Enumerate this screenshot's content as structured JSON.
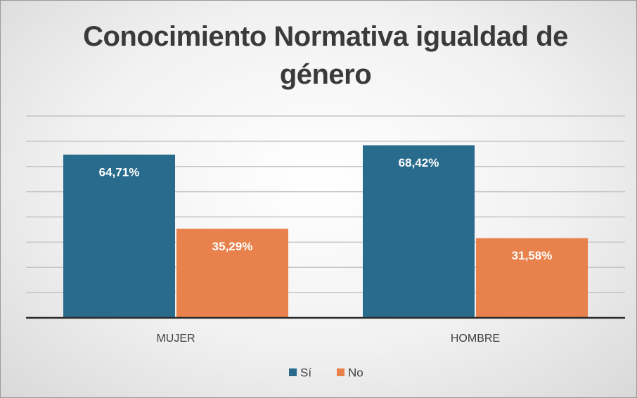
{
  "chart_data": {
    "type": "bar",
    "title": "Conocimiento Normativa igualdad de género",
    "categories": [
      "MUJER",
      "HOMBRE"
    ],
    "series": [
      {
        "name": "Sí",
        "color": "#286b8d",
        "values": [
          64.71,
          68.42
        ],
        "value_labels": [
          "64,71%",
          "68,42%"
        ]
      },
      {
        "name": "No",
        "color": "#e8814b",
        "values": [
          35.29,
          31.58
        ],
        "value_labels": [
          "35,29%",
          "31,58%"
        ]
      }
    ],
    "ylim": [
      0,
      80
    ],
    "yticks": [
      0,
      10,
      20,
      30,
      40,
      50,
      60,
      70,
      80
    ],
    "grid": true,
    "legend": "bottom"
  }
}
